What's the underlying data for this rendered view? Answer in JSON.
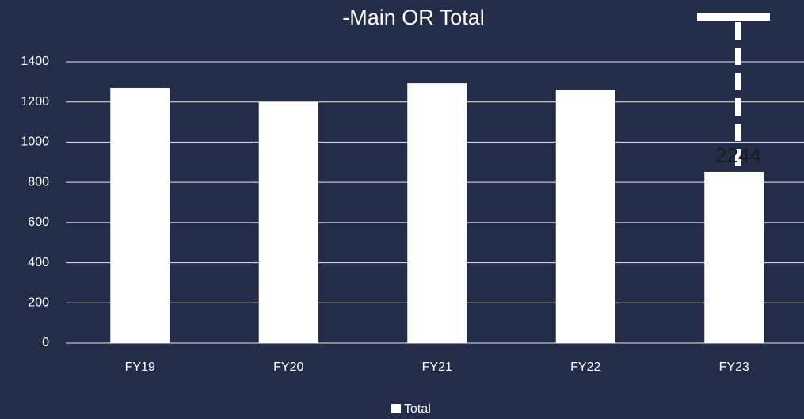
{
  "chart_data": {
    "type": "bar",
    "title": "-Main OR Total",
    "categories": [
      "FY19",
      "FY20",
      "FY21",
      "FY22",
      "FY23"
    ],
    "series": [
      {
        "name": "Total",
        "color": "#ffffff",
        "values": [
          1270,
          1200,
          1293,
          1262,
          852
        ]
      }
    ],
    "ylim": [
      0,
      1400
    ],
    "yticks": [
      0,
      200,
      400,
      600,
      800,
      1000,
      1200,
      1400
    ],
    "grid": true,
    "legend": "bottom",
    "annotations": [
      "2244"
    ]
  }
}
